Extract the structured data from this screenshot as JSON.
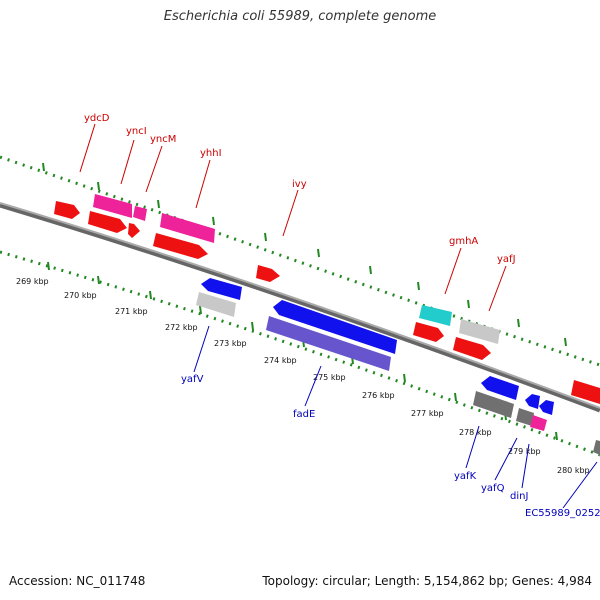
{
  "title": "Escherichia coli 55989, complete genome",
  "footer": {
    "accession": "Accession: NC_011748",
    "topology": "Topology: circular; Length: 5,154,862 bp; Genes: 4,984"
  },
  "colors": {
    "forward_label": "#cc0000",
    "reverse_label": "#0000bb",
    "red": "#ee1111",
    "magenta": "#ee2299",
    "cyan": "#22cccc",
    "blue": "#1111ee",
    "purple": "#6655cc",
    "light_gray": "#c8c8c8",
    "dark_gray": "#707070",
    "ruler": "#228822",
    "backbone": "#888888"
  },
  "tick_labels": [
    "269 kbp",
    "270 kbp",
    "271 kbp",
    "272 kbp",
    "273 kbp",
    "274 kbp",
    "275 kbp",
    "276 kbp",
    "277 kbp",
    "278 kbp",
    "279 kbp",
    "280 kbp"
  ],
  "forward_labels": [
    "ydcD",
    "yncI",
    "yncM",
    "yhhI",
    "ivy",
    "gmhA",
    "yafJ"
  ],
  "reverse_labels": [
    "yafV",
    "fadE",
    "yafK",
    "yafQ",
    "dinJ",
    "EC55989_0252"
  ]
}
